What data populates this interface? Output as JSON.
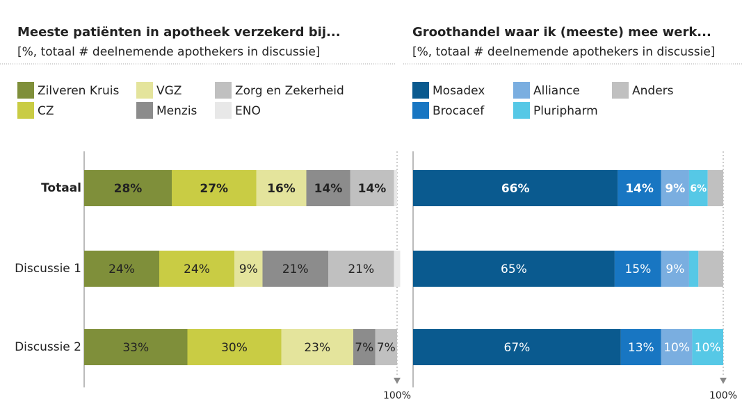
{
  "chart_data": [
    {
      "type": "stacked-bar",
      "orientation": "horizontal",
      "title": "Meeste patiënten in apotheek verzekerd bij...",
      "subtitle": "[%, totaal # deelnemende apothekers in discussie]",
      "categories": [
        "Totaal",
        "Discussie 1",
        "Discussie 2"
      ],
      "xlim": [
        0,
        100
      ],
      "xticks": [
        {
          "value": 100,
          "label": "100%"
        }
      ],
      "series": [
        {
          "name": "Zilveren Kruis",
          "color": "#7f8f3a",
          "values": [
            28,
            24,
            33
          ],
          "value_labels": [
            "28%",
            "24%",
            "33%"
          ]
        },
        {
          "name": "CZ",
          "color": "#c9cc44",
          "values": [
            27,
            24,
            30
          ],
          "value_labels": [
            "27%",
            "24%",
            "30%"
          ]
        },
        {
          "name": "VGZ",
          "color": "#e4e49c",
          "values": [
            16,
            9,
            23
          ],
          "value_labels": [
            "16%",
            "9%",
            "23%"
          ]
        },
        {
          "name": "Menzis",
          "color": "#8c8c8c",
          "values": [
            14,
            21,
            7
          ],
          "value_labels": [
            "14%",
            "21%",
            "7%"
          ]
        },
        {
          "name": "Zorg en Zekerheid",
          "color": "#c0c0c0",
          "values": [
            14,
            21,
            7
          ],
          "value_labels": [
            "14%",
            "21%",
            "7%"
          ]
        },
        {
          "name": "ENO",
          "color": "#e8e8e8",
          "values": [
            1,
            2,
            0
          ],
          "value_labels": [
            null,
            null,
            null
          ]
        }
      ]
    },
    {
      "type": "stacked-bar",
      "orientation": "horizontal",
      "title": "Groothandel waar ik (meeste) mee werk...",
      "subtitle": "[%, totaal # deelnemende apothekers in discussie]",
      "categories": [
        "Totaal",
        "Discussie 1",
        "Discussie 2"
      ],
      "xlim": [
        0,
        100
      ],
      "xticks": [
        {
          "value": 100,
          "label": "100%"
        }
      ],
      "series": [
        {
          "name": "Mosadex",
          "color": "#0a5a8f",
          "values": [
            66,
            65,
            67
          ],
          "value_labels": [
            "66%",
            "65%",
            "67%"
          ]
        },
        {
          "name": "Brocacef",
          "color": "#1876c2",
          "values": [
            14,
            15,
            13
          ],
          "value_labels": [
            "14%",
            "15%",
            "13%"
          ]
        },
        {
          "name": "Alliance",
          "color": "#7aaee0",
          "values": [
            9,
            9,
            10
          ],
          "value_labels": [
            "9%",
            "9%",
            "10%"
          ]
        },
        {
          "name": "Pluripharm",
          "color": "#56c8e6",
          "values": [
            6,
            3,
            10
          ],
          "value_labels": [
            "6%",
            null,
            "10%"
          ]
        },
        {
          "name": "Anders",
          "color": "#c0c0c0",
          "values": [
            5,
            8,
            0
          ],
          "value_labels": [
            null,
            null,
            null
          ]
        }
      ]
    }
  ]
}
